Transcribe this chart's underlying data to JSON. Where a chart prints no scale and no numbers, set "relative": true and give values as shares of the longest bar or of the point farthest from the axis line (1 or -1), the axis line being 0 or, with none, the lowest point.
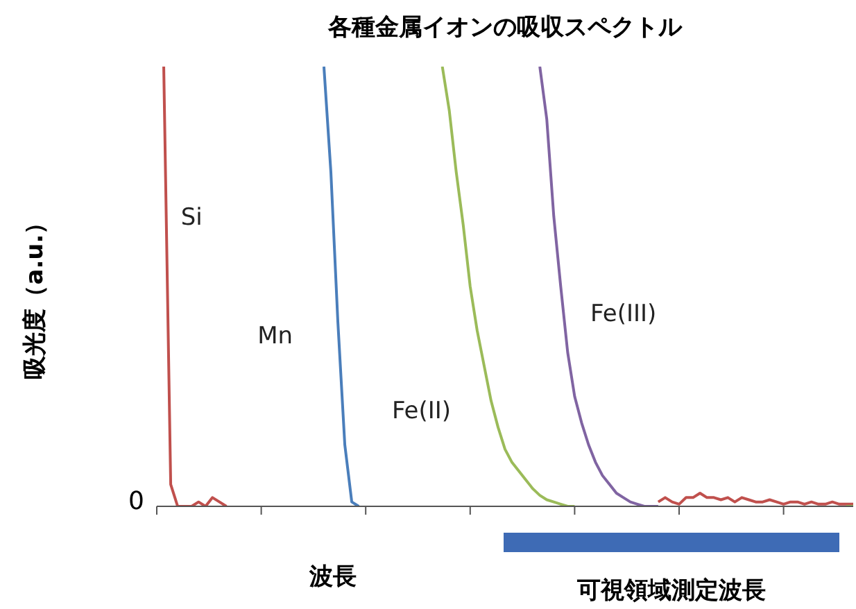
{
  "chart_data": {
    "type": "line",
    "title": "各種金属イオンの吸収スペクトル",
    "xlabel": "波長",
    "ylabel": "吸光度（a.u.）",
    "relative": true,
    "marker": "none",
    "line_style": "solid",
    "categories": [
      null,
      null,
      null,
      null,
      null,
      null,
      null,
      null,
      null,
      null,
      null,
      null,
      null,
      null,
      null,
      null,
      null,
      null,
      null,
      null,
      null,
      null,
      null,
      null,
      null,
      null,
      null,
      null,
      null,
      null,
      null,
      null,
      null,
      null,
      null,
      null,
      null,
      null,
      null,
      null,
      null,
      null,
      null,
      null,
      null,
      null,
      null,
      null,
      null,
      null,
      null,
      null,
      null,
      null,
      null,
      null,
      null,
      null,
      null,
      null,
      null,
      null,
      null,
      null,
      null,
      null,
      null,
      null,
      null,
      null,
      null,
      null,
      null,
      null,
      null,
      null,
      null,
      null,
      null,
      null,
      null,
      null,
      null,
      null,
      null,
      null,
      null,
      null,
      null,
      null,
      null,
      null,
      null,
      null,
      null,
      null,
      null,
      null,
      null,
      null,
      null
    ],
    "series": [
      {
        "name": "Si",
        "color": "#c0504d",
        "values": [
          null,
          1,
          0.05,
          0,
          0,
          0,
          0.01,
          0,
          0.02,
          0.01,
          0,
          null,
          null,
          null,
          null,
          null,
          null,
          null,
          null,
          null,
          null,
          null,
          null,
          null,
          null,
          null,
          null,
          null,
          null,
          null,
          null,
          null,
          null,
          null,
          null,
          null,
          null,
          null,
          null,
          null,
          null,
          null,
          null,
          null,
          null,
          null,
          null,
          null,
          null,
          null,
          null,
          null,
          null,
          null,
          null,
          null,
          null,
          null,
          null,
          null,
          null,
          null,
          null,
          null,
          null,
          null,
          null,
          null,
          null,
          null,
          null,
          null,
          0.01,
          0.02,
          0.01,
          0.005,
          0.02,
          0.02,
          0.03,
          0.02,
          0.02,
          0.015,
          0.02,
          0.01,
          0.02,
          0.015,
          0.01,
          0.01,
          0.015,
          0.01,
          0.005,
          0.01,
          0.01,
          0.005,
          0.01,
          0.005,
          0.005,
          0.01,
          0.005,
          0.005,
          0.005
        ]
      },
      {
        "name": "Mn",
        "color": "#4a7ebb",
        "values": [
          null,
          null,
          null,
          null,
          null,
          null,
          null,
          null,
          null,
          null,
          null,
          null,
          null,
          null,
          null,
          null,
          null,
          null,
          null,
          null,
          null,
          null,
          null,
          null,
          1,
          0.76,
          0.42,
          0.14,
          0.01,
          0,
          null,
          null,
          null,
          null,
          null,
          null,
          null,
          null,
          null,
          null,
          null,
          null,
          null,
          null,
          null,
          null,
          null,
          null,
          null,
          null,
          null,
          null,
          null,
          null,
          null,
          null,
          null,
          null,
          null,
          null,
          null,
          null,
          null,
          null,
          null,
          null,
          null,
          null,
          null,
          null,
          null,
          null,
          null,
          null,
          null,
          null,
          null,
          null,
          null,
          null,
          null,
          null,
          null,
          null,
          null,
          null,
          null,
          null,
          null,
          null,
          null,
          null,
          null,
          null,
          null,
          null,
          null,
          null,
          null,
          null,
          null
        ]
      },
      {
        "name": "Fe(II)",
        "color": "#9bbb59",
        "values": [
          null,
          null,
          null,
          null,
          null,
          null,
          null,
          null,
          null,
          null,
          null,
          null,
          null,
          null,
          null,
          null,
          null,
          null,
          null,
          null,
          null,
          null,
          null,
          null,
          null,
          null,
          null,
          null,
          null,
          null,
          null,
          null,
          null,
          null,
          null,
          null,
          null,
          null,
          null,
          null,
          null,
          1,
          0.9,
          0.76,
          0.64,
          0.5,
          0.4,
          0.32,
          0.24,
          0.18,
          0.13,
          0.1,
          0.08,
          0.06,
          0.04,
          0.025,
          0.015,
          0.01,
          0.005,
          0,
          0,
          null,
          null,
          null,
          null,
          null,
          null,
          null,
          null,
          null,
          null,
          null,
          null,
          null,
          null,
          null,
          null,
          null,
          null,
          null,
          null,
          null,
          null,
          null,
          null,
          null,
          null,
          null,
          null,
          null,
          null,
          null,
          null,
          null,
          null,
          null,
          null,
          null,
          null,
          0,
          0
        ]
      },
      {
        "name": "Fe(III)",
        "color": "#8064a2",
        "values": [
          null,
          null,
          null,
          null,
          null,
          null,
          null,
          null,
          null,
          null,
          null,
          null,
          null,
          null,
          null,
          null,
          null,
          null,
          null,
          null,
          null,
          null,
          null,
          null,
          null,
          null,
          null,
          null,
          null,
          null,
          null,
          null,
          null,
          null,
          null,
          null,
          null,
          null,
          null,
          null,
          null,
          null,
          null,
          null,
          null,
          null,
          null,
          null,
          null,
          null,
          null,
          null,
          null,
          null,
          null,
          1,
          0.88,
          0.66,
          0.5,
          0.35,
          0.25,
          0.19,
          0.14,
          0.1,
          0.07,
          0.05,
          0.03,
          0.02,
          0.01,
          0.005,
          0,
          0,
          0,
          null,
          null,
          null,
          null,
          null,
          null,
          null,
          null,
          null,
          null,
          null,
          null,
          null,
          null,
          null,
          null,
          null,
          null,
          null,
          null,
          null,
          null,
          null,
          null,
          null,
          null,
          null,
          null
        ]
      }
    ],
    "annotations": [
      "0",
      "可視領域測定波長"
    ]
  }
}
